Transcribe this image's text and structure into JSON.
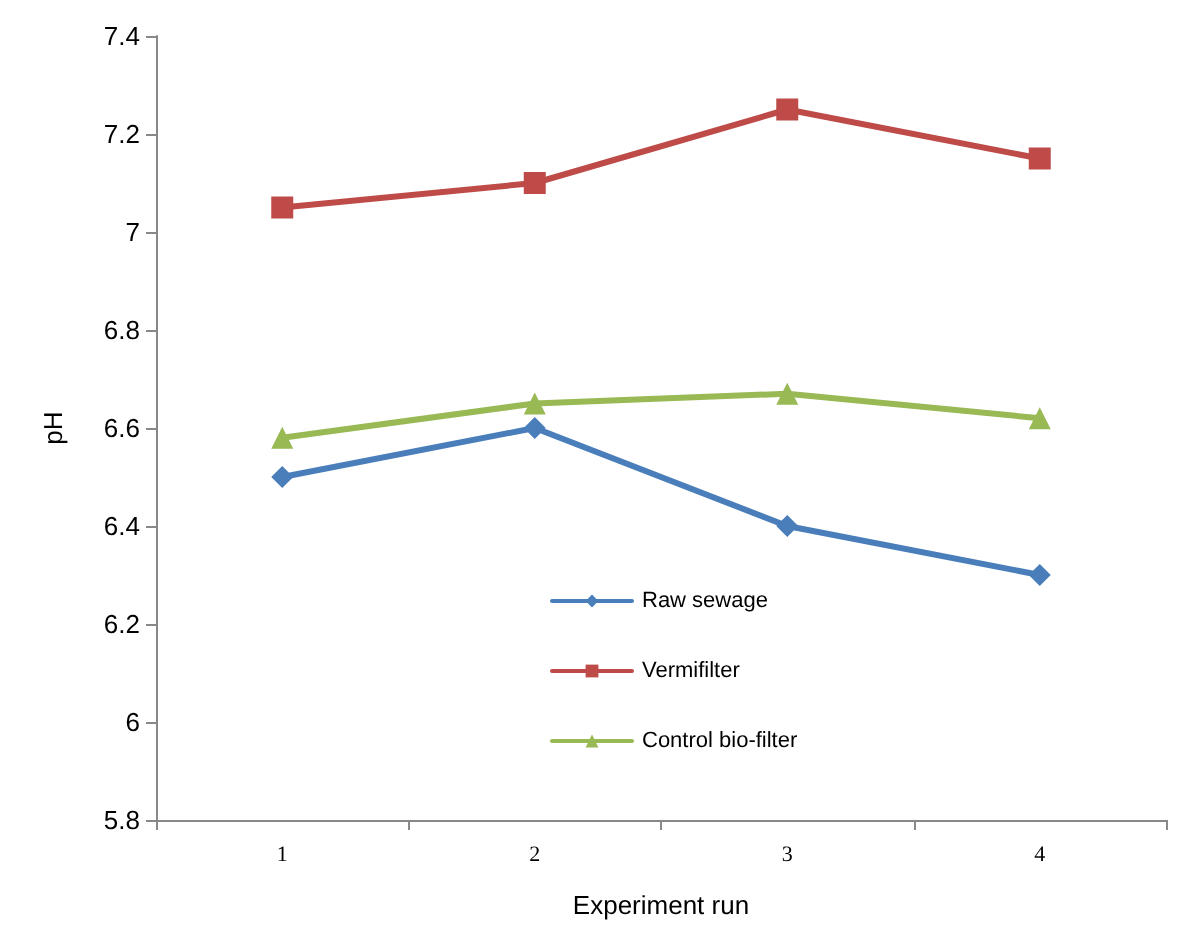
{
  "chart_data": {
    "type": "line",
    "xlabel": "Experiment run",
    "ylabel": "pH",
    "categories": [
      "1",
      "2",
      "3",
      "4"
    ],
    "series": [
      {
        "name": "Raw sewage",
        "color": "#4a7ebb",
        "marker": "diamond",
        "values": [
          6.5,
          6.6,
          6.4,
          6.3
        ]
      },
      {
        "name": "Vermifilter",
        "color": "#be4b48",
        "marker": "square",
        "values": [
          7.05,
          7.1,
          7.25,
          7.15
        ]
      },
      {
        "name": "Control bio-filter",
        "color": "#98b954",
        "marker": "triangle",
        "values": [
          6.58,
          6.65,
          6.67,
          6.62
        ]
      }
    ],
    "ylim": [
      5.8,
      7.4
    ],
    "yticks": [
      5.8,
      6,
      6.2,
      6.4,
      6.6,
      6.8,
      7,
      7.2,
      7.4
    ],
    "grid": false,
    "legend": "bottom",
    "line_style": "solid"
  }
}
